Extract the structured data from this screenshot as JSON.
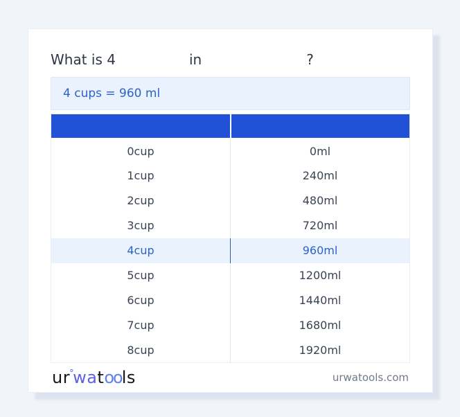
{
  "colors": {
    "page_background": "#f1f4f9",
    "header_blue": "#2151d7",
    "link_blue": "#2b63c9",
    "highlight_row_bg": "#eaf2fd",
    "result_box_bg": "#eaf2fd",
    "logo_indigo": "#5d60e8",
    "logo_blue": "#5f7ff2"
  },
  "question": {
    "prefix": "What is 4",
    "connector": "in",
    "suffix": "?"
  },
  "result": {
    "text": "4 cups = 960 ml"
  },
  "table": {
    "header": {
      "col1": "",
      "col2": ""
    },
    "highlighted_row": 4,
    "rows": [
      {
        "cup": "0cup",
        "ml": "0ml"
      },
      {
        "cup": "1cup",
        "ml": "240ml"
      },
      {
        "cup": "2cup",
        "ml": "480ml"
      },
      {
        "cup": "3cup",
        "ml": "720ml"
      },
      {
        "cup": "4cup",
        "ml": "960ml"
      },
      {
        "cup": "5cup",
        "ml": "1200ml"
      },
      {
        "cup": "6cup",
        "ml": "1440ml"
      },
      {
        "cup": "7cup",
        "ml": "1680ml"
      },
      {
        "cup": "8cup",
        "ml": "1920ml"
      }
    ]
  },
  "footer": {
    "logo": {
      "part1": "ur",
      "degree": "°",
      "part2": "wa",
      "part3": "t",
      "part4": "oo",
      "part5": "ls"
    },
    "site": "urwatools.com"
  }
}
